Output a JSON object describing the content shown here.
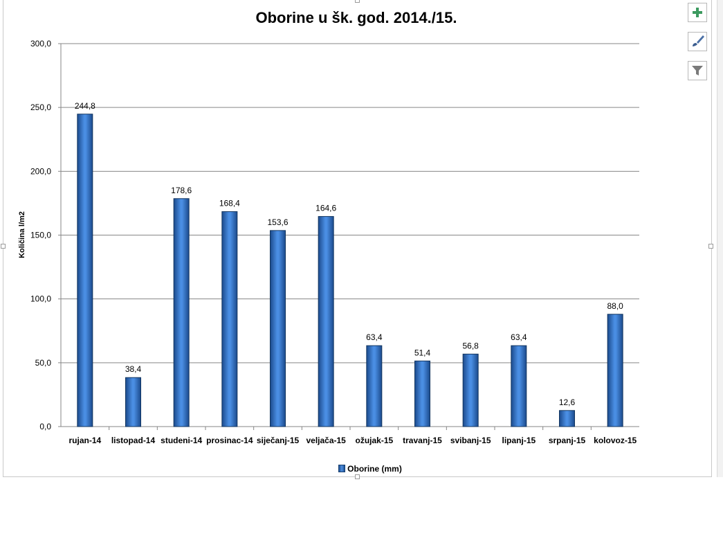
{
  "chart_data": {
    "type": "bar",
    "title": "Oborine u šk. god. 2014./15.",
    "ylabel": "Količina l/m2",
    "xlabel": "",
    "ylim": [
      0,
      300
    ],
    "yticks": [
      "0,0",
      "50,0",
      "100,0",
      "150,0",
      "200,0",
      "250,0",
      "300,0"
    ],
    "ytick_values": [
      0,
      50,
      100,
      150,
      200,
      250,
      300
    ],
    "grid": true,
    "legend": "bottom",
    "categories": [
      "rujan-14",
      "listopad-14",
      "studeni-14",
      "prosinac-14",
      "siječanj-15",
      "veljača-15",
      "ožujak-15",
      "travanj-15",
      "svibanj-15",
      "lipanj-15",
      "srpanj-15",
      "kolovoz-15"
    ],
    "series": [
      {
        "name": "Oborine (mm)",
        "values": [
          244.8,
          38.4,
          178.6,
          168.4,
          153.6,
          164.6,
          63.4,
          51.4,
          56.8,
          63.4,
          12.6,
          88.0
        ],
        "labels": [
          "244,8",
          "38,4",
          "178,6",
          "168,4",
          "153,6",
          "164,6",
          "63,4",
          "51,4",
          "56,8",
          "63,4",
          "12,6",
          "88,0"
        ],
        "color": "#3a7bd5"
      }
    ]
  },
  "toolbar": {
    "add_icon": "plus-icon",
    "style_icon": "paintbrush-icon",
    "filter_icon": "filter-icon"
  }
}
